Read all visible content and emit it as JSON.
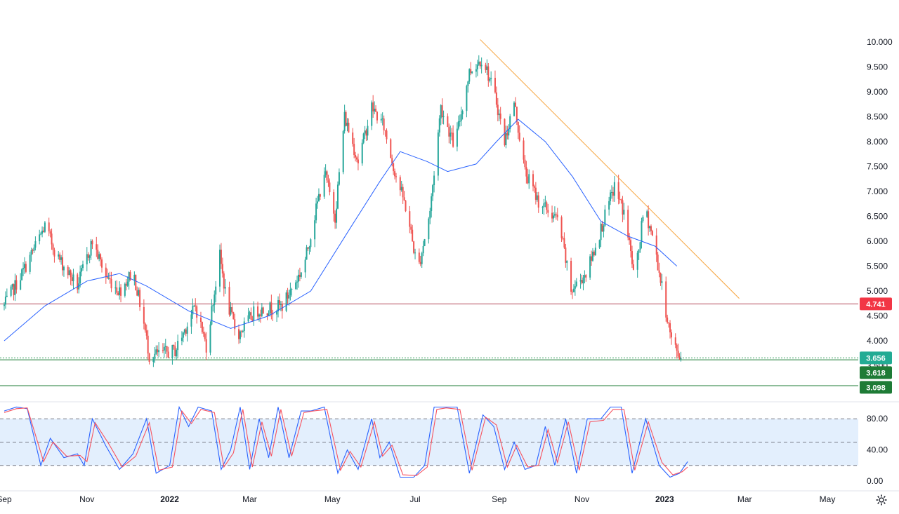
{
  "chart_data": [
    {
      "type": "candlestick",
      "title": "",
      "x_tick_labels": [
        {
          "date": "2021-09-01",
          "label": "Sep"
        },
        {
          "date": "2021-11-01",
          "label": "Nov"
        },
        {
          "date": "2022-01-01",
          "label": "2022",
          "bold": true
        },
        {
          "date": "2022-03-01",
          "label": "Mar"
        },
        {
          "date": "2022-05-01",
          "label": "May"
        },
        {
          "date": "2022-07-01",
          "label": "Jul"
        },
        {
          "date": "2022-09-01",
          "label": "Sep"
        },
        {
          "date": "2022-11-01",
          "label": "Nov"
        },
        {
          "date": "2023-01-01",
          "label": "2023",
          "bold": true
        },
        {
          "date": "2023-03-01",
          "label": "Mar"
        },
        {
          "date": "2023-05-01",
          "label": "May"
        }
      ],
      "y_tick_labels": [
        "10.000",
        "9.500",
        "9.000",
        "8.500",
        "8.000",
        "7.500",
        "7.000",
        "6.500",
        "6.000",
        "5.500",
        "5.000",
        "4.500",
        "4.000",
        "3.500",
        "3.000"
      ],
      "ylim": [
        3.0,
        10.0
      ],
      "up_color": "#26a69a",
      "down_color": "#ef5350",
      "price_path": [
        [
          "2021-09-01",
          4.7
        ],
        [
          "2021-09-15",
          5.4
        ],
        [
          "2021-10-01",
          6.3
        ],
        [
          "2021-10-10",
          5.7
        ],
        [
          "2021-10-25",
          5.1
        ],
        [
          "2021-11-05",
          6.0
        ],
        [
          "2021-11-15",
          5.3
        ],
        [
          "2021-11-25",
          5.0
        ],
        [
          "2021-12-05",
          5.4
        ],
        [
          "2021-12-12",
          4.5
        ],
        [
          "2021-12-17",
          3.7
        ],
        [
          "2022-01-05",
          3.8
        ],
        [
          "2022-01-20",
          4.7
        ],
        [
          "2022-01-28",
          3.9
        ],
        [
          "2022-02-07",
          5.7
        ],
        [
          "2022-02-12",
          4.8
        ],
        [
          "2022-02-20",
          4.1
        ],
        [
          "2022-03-05",
          4.6
        ],
        [
          "2022-03-25",
          4.7
        ],
        [
          "2022-04-10",
          5.5
        ],
        [
          "2022-04-25",
          7.4
        ],
        [
          "2022-05-03",
          6.5
        ],
        [
          "2022-05-10",
          8.5
        ],
        [
          "2022-05-20",
          7.6
        ],
        [
          "2022-05-30",
          8.7
        ],
        [
          "2022-06-08",
          8.3
        ],
        [
          "2022-06-15",
          7.5
        ],
        [
          "2022-06-25",
          6.6
        ],
        [
          "2022-07-03",
          5.4
        ],
        [
          "2022-07-12",
          6.6
        ],
        [
          "2022-07-20",
          8.7
        ],
        [
          "2022-07-30",
          7.9
        ],
        [
          "2022-08-10",
          9.4
        ],
        [
          "2022-08-20",
          9.7
        ],
        [
          "2022-08-30",
          8.8
        ],
        [
          "2022-09-05",
          8.0
        ],
        [
          "2022-09-12",
          8.8
        ],
        [
          "2022-09-20",
          7.4
        ],
        [
          "2022-09-30",
          6.8
        ],
        [
          "2022-10-15",
          6.4
        ],
        [
          "2022-10-24",
          5.0
        ],
        [
          "2022-11-05",
          5.4
        ],
        [
          "2022-11-18",
          6.5
        ],
        [
          "2022-11-25",
          7.1
        ],
        [
          "2022-12-03",
          6.5
        ],
        [
          "2022-12-10",
          5.2
        ],
        [
          "2022-12-17",
          6.7
        ],
        [
          "2022-12-24",
          6.0
        ],
        [
          "2022-12-31",
          4.9
        ],
        [
          "2023-01-06",
          4.0
        ],
        [
          "2023-01-14",
          3.6
        ]
      ],
      "moving_average": {
        "color": "#2962ff",
        "points": [
          [
            "2021-09-01",
            4.0
          ],
          [
            "2021-10-01",
            4.7
          ],
          [
            "2021-11-01",
            5.2
          ],
          [
            "2021-11-25",
            5.35
          ],
          [
            "2021-12-15",
            5.1
          ],
          [
            "2022-01-15",
            4.6
          ],
          [
            "2022-02-15",
            4.25
          ],
          [
            "2022-03-15",
            4.5
          ],
          [
            "2022-04-15",
            5.0
          ],
          [
            "2022-05-15",
            6.3
          ],
          [
            "2022-06-05",
            7.2
          ],
          [
            "2022-06-20",
            7.8
          ],
          [
            "2022-07-10",
            7.6
          ],
          [
            "2022-07-25",
            7.4
          ],
          [
            "2022-08-15",
            7.55
          ],
          [
            "2022-08-30",
            8.0
          ],
          [
            "2022-09-15",
            8.45
          ],
          [
            "2022-10-05",
            8.0
          ],
          [
            "2022-10-25",
            7.3
          ],
          [
            "2022-11-15",
            6.4
          ],
          [
            "2022-12-05",
            6.1
          ],
          [
            "2022-12-25",
            5.9
          ],
          [
            "2023-01-10",
            5.5
          ]
        ]
      },
      "trendline": {
        "color": "#f6a33c",
        "from": [
          "2022-08-18",
          10.05
        ],
        "to": [
          "2023-02-25",
          4.85
        ]
      },
      "horizontal_lines": [
        {
          "value": 4.741,
          "color": "#b2485a",
          "style": "solid"
        },
        {
          "value": 3.656,
          "color": "#2e9b5a",
          "style": "dotted"
        },
        {
          "value": 3.618,
          "color": "#1e7b36",
          "style": "solid"
        },
        {
          "value": 3.098,
          "color": "#1e7b36",
          "style": "solid"
        }
      ],
      "price_badges": [
        {
          "text": "4.741",
          "value": 4.741,
          "color": "#f23645"
        },
        {
          "text": "3.656",
          "value": 3.656,
          "color": "#22ab94"
        },
        {
          "text": "3.618",
          "value": 3.618,
          "color": "#1e7b36"
        },
        {
          "text": "3.098",
          "value": 3.098,
          "color": "#1e7b36"
        }
      ]
    },
    {
      "type": "line",
      "title": "",
      "ylim": [
        0,
        100
      ],
      "y_tick_labels": [
        "80.00",
        "40.00",
        "0.00"
      ],
      "y_tick_values": [
        80,
        40,
        0
      ],
      "band": {
        "low": 20,
        "high": 80,
        "fill": "#e3effd"
      },
      "dashed_levels": [
        80,
        50,
        20
      ],
      "series": [
        {
          "color": "#2962ff",
          "points": [
            [
              "2021-09-01",
              90
            ],
            [
              "2021-09-10",
              95
            ],
            [
              "2021-09-18",
              93
            ],
            [
              "2021-09-28",
              20
            ],
            [
              "2021-10-05",
              55
            ],
            [
              "2021-10-15",
              30
            ],
            [
              "2021-10-25",
              35
            ],
            [
              "2021-10-30",
              20
            ],
            [
              "2021-11-05",
              80
            ],
            [
              "2021-11-15",
              45
            ],
            [
              "2021-11-25",
              15
            ],
            [
              "2021-12-05",
              35
            ],
            [
              "2021-12-15",
              80
            ],
            [
              "2021-12-22",
              10
            ],
            [
              "2022-01-01",
              20
            ],
            [
              "2022-01-08",
              95
            ],
            [
              "2022-01-15",
              70
            ],
            [
              "2022-01-22",
              95
            ],
            [
              "2022-02-01",
              90
            ],
            [
              "2022-02-08",
              15
            ],
            [
              "2022-02-15",
              40
            ],
            [
              "2022-02-22",
              95
            ],
            [
              "2022-03-01",
              15
            ],
            [
              "2022-03-08",
              80
            ],
            [
              "2022-03-15",
              30
            ],
            [
              "2022-03-22",
              95
            ],
            [
              "2022-03-30",
              30
            ],
            [
              "2022-04-08",
              90
            ],
            [
              "2022-04-15",
              90
            ],
            [
              "2022-04-25",
              95
            ],
            [
              "2022-05-05",
              10
            ],
            [
              "2022-05-12",
              40
            ],
            [
              "2022-05-20",
              15
            ],
            [
              "2022-05-30",
              80
            ],
            [
              "2022-06-05",
              30
            ],
            [
              "2022-06-12",
              50
            ],
            [
              "2022-06-20",
              5
            ],
            [
              "2022-06-30",
              5
            ],
            [
              "2022-07-08",
              20
            ],
            [
              "2022-07-15",
              95
            ],
            [
              "2022-07-22",
              95
            ],
            [
              "2022-08-01",
              95
            ],
            [
              "2022-08-10",
              10
            ],
            [
              "2022-08-20",
              85
            ],
            [
              "2022-08-28",
              70
            ],
            [
              "2022-09-05",
              15
            ],
            [
              "2022-09-12",
              50
            ],
            [
              "2022-09-20",
              15
            ],
            [
              "2022-09-28",
              20
            ],
            [
              "2022-10-05",
              70
            ],
            [
              "2022-10-12",
              20
            ],
            [
              "2022-10-20",
              80
            ],
            [
              "2022-10-28",
              10
            ],
            [
              "2022-11-05",
              80
            ],
            [
              "2022-11-15",
              80
            ],
            [
              "2022-11-22",
              95
            ],
            [
              "2022-11-30",
              95
            ],
            [
              "2022-12-08",
              10
            ],
            [
              "2022-12-18",
              80
            ],
            [
              "2022-12-28",
              20
            ],
            [
              "2023-01-05",
              5
            ],
            [
              "2023-01-12",
              10
            ],
            [
              "2023-01-18",
              25
            ]
          ]
        },
        {
          "color": "#f7525f",
          "points": [
            [
              "2021-09-01",
              88
            ],
            [
              "2021-09-10",
              93
            ],
            [
              "2021-09-18",
              94
            ],
            [
              "2021-09-30",
              25
            ],
            [
              "2021-10-07",
              50
            ],
            [
              "2021-10-17",
              32
            ],
            [
              "2021-10-27",
              33
            ],
            [
              "2021-11-01",
              25
            ],
            [
              "2021-11-07",
              75
            ],
            [
              "2021-11-17",
              48
            ],
            [
              "2021-11-27",
              18
            ],
            [
              "2021-12-07",
              32
            ],
            [
              "2021-12-17",
              75
            ],
            [
              "2021-12-24",
              14
            ],
            [
              "2022-01-03",
              18
            ],
            [
              "2022-01-10",
              90
            ],
            [
              "2022-01-17",
              74
            ],
            [
              "2022-01-24",
              92
            ],
            [
              "2022-02-03",
              88
            ],
            [
              "2022-02-10",
              18
            ],
            [
              "2022-02-17",
              36
            ],
            [
              "2022-02-24",
              92
            ],
            [
              "2022-03-03",
              18
            ],
            [
              "2022-03-10",
              76
            ],
            [
              "2022-03-17",
              32
            ],
            [
              "2022-03-24",
              92
            ],
            [
              "2022-04-01",
              32
            ],
            [
              "2022-04-10",
              88
            ],
            [
              "2022-04-17",
              90
            ],
            [
              "2022-04-27",
              92
            ],
            [
              "2022-05-07",
              14
            ],
            [
              "2022-05-14",
              38
            ],
            [
              "2022-05-22",
              18
            ],
            [
              "2022-06-01",
              76
            ],
            [
              "2022-06-07",
              32
            ],
            [
              "2022-06-14",
              46
            ],
            [
              "2022-06-22",
              8
            ],
            [
              "2022-07-02",
              7
            ],
            [
              "2022-07-10",
              18
            ],
            [
              "2022-07-17",
              92
            ],
            [
              "2022-07-24",
              94
            ],
            [
              "2022-08-03",
              92
            ],
            [
              "2022-08-12",
              14
            ],
            [
              "2022-08-22",
              82
            ],
            [
              "2022-08-30",
              72
            ],
            [
              "2022-09-07",
              18
            ],
            [
              "2022-09-14",
              46
            ],
            [
              "2022-09-22",
              18
            ],
            [
              "2022-09-30",
              20
            ],
            [
              "2022-10-07",
              66
            ],
            [
              "2022-10-14",
              24
            ],
            [
              "2022-10-22",
              76
            ],
            [
              "2022-10-30",
              14
            ],
            [
              "2022-11-07",
              76
            ],
            [
              "2022-11-17",
              78
            ],
            [
              "2022-11-24",
              92
            ],
            [
              "2022-12-02",
              92
            ],
            [
              "2022-12-10",
              14
            ],
            [
              "2022-12-20",
              76
            ],
            [
              "2022-12-30",
              24
            ],
            [
              "2023-01-07",
              8
            ],
            [
              "2023-01-14",
              12
            ],
            [
              "2023-01-18",
              18
            ]
          ]
        }
      ]
    }
  ],
  "icons": {
    "settings": "gear-icon"
  }
}
